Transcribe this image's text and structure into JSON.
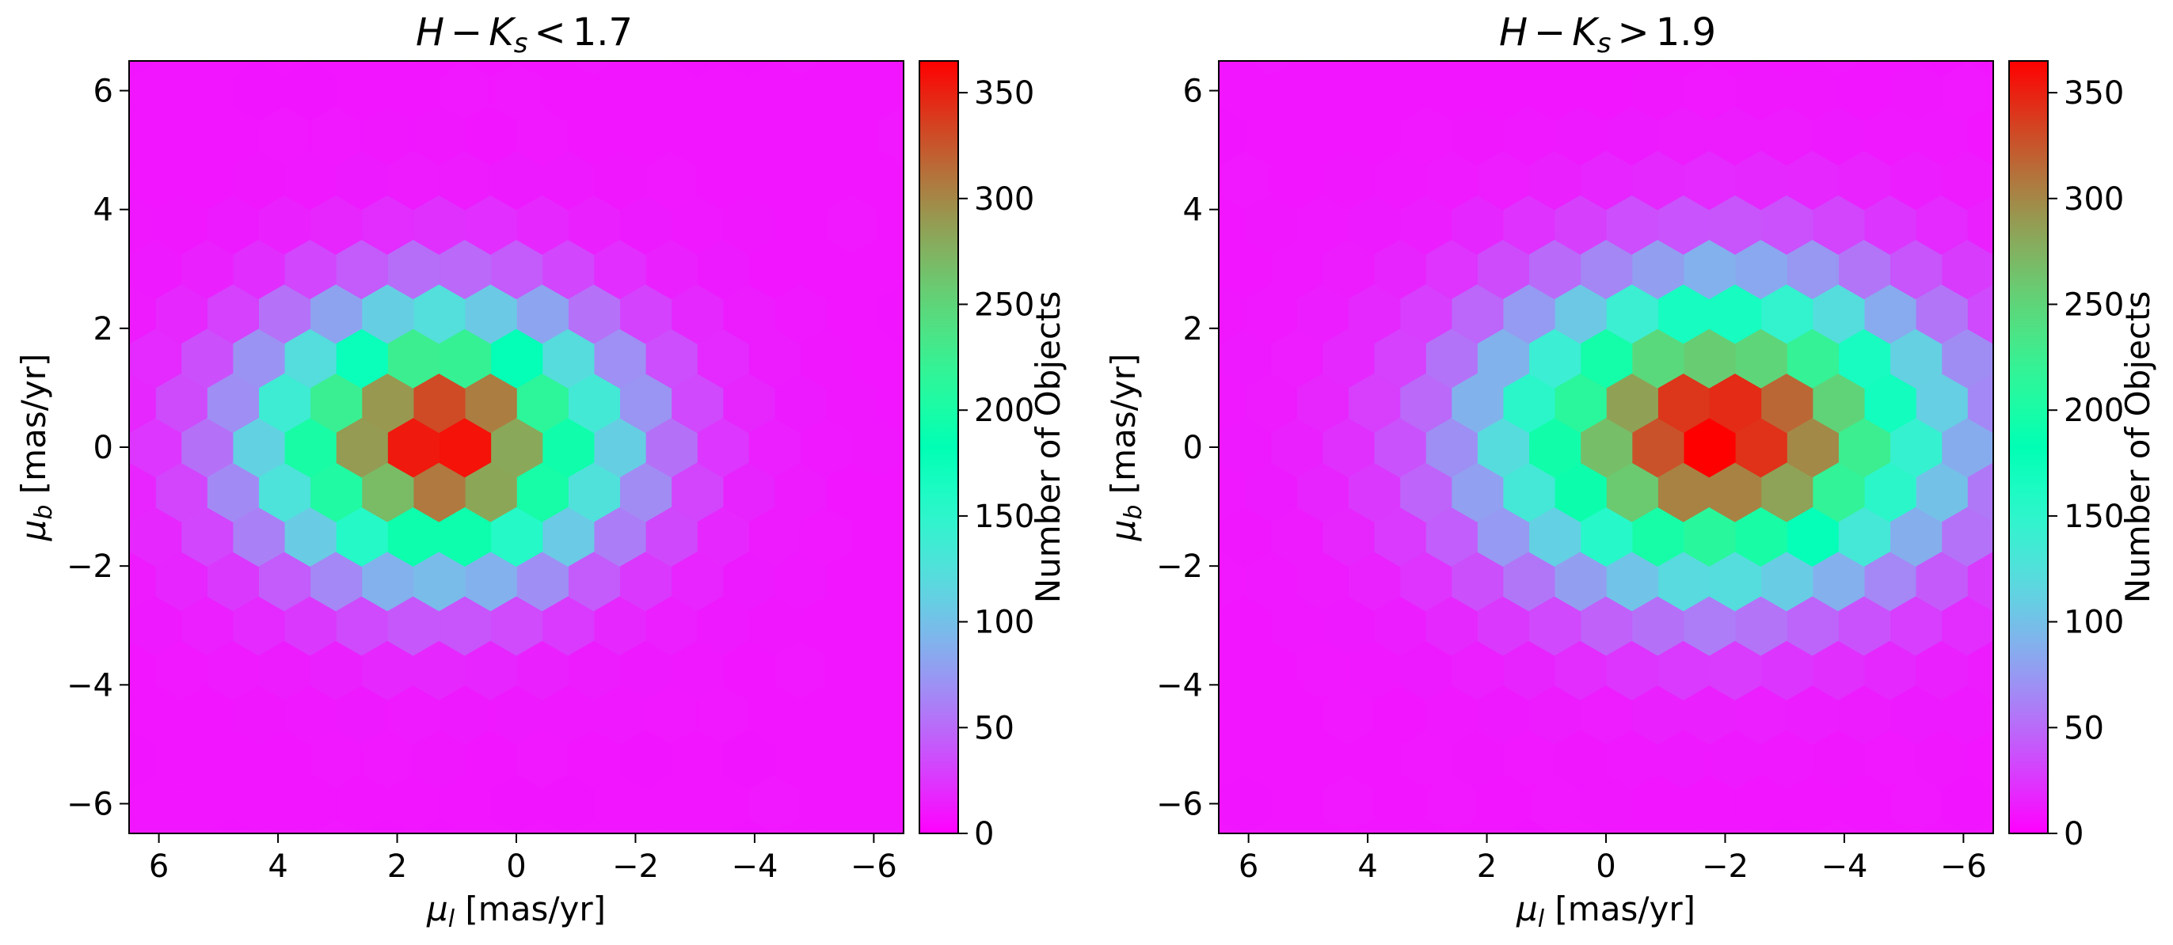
{
  "chart_data": [
    {
      "type": "heatmap",
      "subtype": "hexbin",
      "title": {
        "prefix": "H",
        "minus": "−",
        "k": "K",
        "sub": "s",
        "rel": "<",
        "value": "1.7"
      },
      "xlabel": {
        "sym": "μ",
        "sub": "l",
        "unit": " [mas/yr]"
      },
      "ylabel": {
        "sym": "μ",
        "sub": "b",
        "unit": " [mas/yr]"
      },
      "xlim": [
        6.5,
        -6.5
      ],
      "ylim": [
        -6.5,
        6.5
      ],
      "x_inverted": true,
      "xticks": [
        6,
        4,
        2,
        0,
        -2,
        -4,
        -6
      ],
      "xtick_labels": [
        "6",
        "4",
        "2",
        "0",
        "−2",
        "−4",
        "−6"
      ],
      "yticks": [
        6,
        4,
        2,
        0,
        -2,
        -4,
        -6
      ],
      "ytick_labels": [
        "6",
        "4",
        "2",
        "0",
        "−2",
        "−4",
        "−6"
      ],
      "colormap": "rainbow",
      "colorbar": {
        "label": "Number of Objects",
        "min": 0,
        "max": 365,
        "ticks": [
          0,
          50,
          100,
          150,
          200,
          250,
          300,
          350
        ],
        "tick_labels": [
          "0",
          "50",
          "100",
          "150",
          "200",
          "250",
          "300",
          "350"
        ]
      },
      "density_model": {
        "center": [
          1.3,
          0.1
        ],
        "sigma": [
          1.9,
          1.4
        ],
        "peak": 365,
        "floor": 10
      }
    },
    {
      "type": "heatmap",
      "subtype": "hexbin",
      "title": {
        "prefix": "H",
        "minus": "−",
        "k": "K",
        "sub": "s",
        "rel": ">",
        "value": "1.9"
      },
      "xlabel": {
        "sym": "μ",
        "sub": "l",
        "unit": " [mas/yr]"
      },
      "ylabel": {
        "sym": "μ",
        "sub": "b",
        "unit": " [mas/yr]"
      },
      "xlim": [
        6.5,
        -6.5
      ],
      "ylim": [
        -6.5,
        6.5
      ],
      "x_inverted": true,
      "xticks": [
        6,
        4,
        2,
        0,
        -2,
        -4,
        -6
      ],
      "xtick_labels": [
        "6",
        "4",
        "2",
        "0",
        "−2",
        "−4",
        "−6"
      ],
      "yticks": [
        6,
        4,
        2,
        0,
        -2,
        -4,
        -6
      ],
      "ytick_labels": [
        "6",
        "4",
        "2",
        "0",
        "−2",
        "−4",
        "−6"
      ],
      "colormap": "rainbow",
      "colorbar": {
        "label": "Number of Objects",
        "min": 0,
        "max": 365,
        "ticks": [
          0,
          50,
          100,
          150,
          200,
          250,
          300,
          350
        ],
        "tick_labels": [
          "0",
          "50",
          "100",
          "150",
          "200",
          "250",
          "300",
          "350"
        ]
      },
      "density_model": {
        "center": [
          -1.9,
          0.2
        ],
        "sigma": [
          2.4,
          1.6
        ],
        "peak": 365,
        "floor": 10
      }
    }
  ]
}
